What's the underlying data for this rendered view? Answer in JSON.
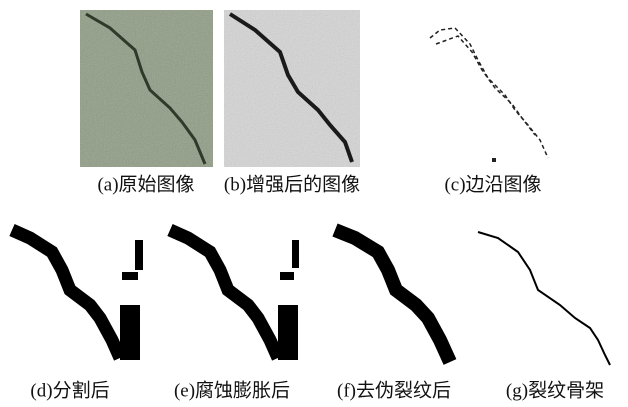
{
  "figure": {
    "panels": [
      {
        "caption": "(a)原始图像"
      },
      {
        "caption": "(b)增强后的图像"
      },
      {
        "caption": "(c)边沿图像"
      },
      {
        "caption": "(d)分割后"
      },
      {
        "caption": "(e)腐蚀膨胀后"
      },
      {
        "caption": "(f)去伪裂纹后"
      },
      {
        "caption": "(g)裂纹骨架"
      }
    ]
  }
}
